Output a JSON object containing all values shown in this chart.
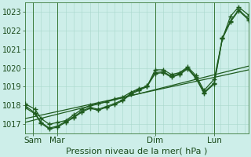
{
  "title": "Pression niveau de la mer( hPa )",
  "background_color": "#cdeee9",
  "grid_color": "#a8d8cc",
  "line_color": "#1f5c1f",
  "marker_color": "#1f5c1f",
  "ylim": [
    1016.5,
    1023.5
  ],
  "yticks": [
    1017,
    1018,
    1019,
    1020,
    1021,
    1022,
    1023
  ],
  "xlim": [
    0,
    110
  ],
  "day_labels": [
    "Sam",
    "Mar",
    "Dim",
    "Lun"
  ],
  "day_positions": [
    4,
    16,
    64,
    93
  ],
  "vline_positions": [
    4,
    16,
    64,
    93
  ],
  "line1_x": [
    0,
    110
  ],
  "line1_y": [
    1017.1,
    1020.1
  ],
  "line2_x": [
    0,
    5,
    8,
    12,
    16,
    20,
    24,
    28,
    32,
    36,
    40,
    44,
    48,
    52,
    56,
    60,
    64,
    68,
    72,
    76,
    80,
    84,
    88,
    93,
    97,
    101,
    105,
    110
  ],
  "line2_y": [
    1018.1,
    1017.8,
    1017.3,
    1017.0,
    1017.1,
    1017.2,
    1017.5,
    1017.8,
    1018.0,
    1018.1,
    1018.2,
    1018.35,
    1018.45,
    1018.7,
    1018.9,
    1019.0,
    1019.9,
    1019.9,
    1019.65,
    1019.75,
    1020.05,
    1019.6,
    1018.8,
    1019.4,
    1021.55,
    1022.75,
    1023.25,
    1022.8
  ],
  "line3_x": [
    0,
    5,
    8,
    12,
    16,
    20,
    24,
    28,
    32,
    36,
    40,
    44,
    48,
    52,
    56,
    60,
    64,
    68,
    72,
    76,
    80,
    84,
    88,
    93,
    97,
    101,
    105,
    110
  ],
  "line3_y": [
    1018.0,
    1017.6,
    1017.1,
    1016.8,
    1016.9,
    1017.15,
    1017.4,
    1017.7,
    1017.9,
    1017.8,
    1017.95,
    1018.1,
    1018.3,
    1018.65,
    1018.85,
    1019.05,
    1019.75,
    1019.8,
    1019.55,
    1019.7,
    1020.0,
    1019.5,
    1018.7,
    1019.2,
    1021.6,
    1022.5,
    1023.1,
    1022.6
  ],
  "line4_x": [
    0,
    5,
    8,
    12,
    16,
    20,
    24,
    28,
    32,
    36,
    40,
    44,
    48,
    52,
    56,
    60,
    64,
    68,
    72,
    76,
    80,
    84,
    88,
    93,
    97,
    101,
    105,
    110
  ],
  "line4_y": [
    1017.9,
    1017.55,
    1017.05,
    1016.75,
    1016.85,
    1017.1,
    1017.35,
    1017.65,
    1017.85,
    1017.75,
    1017.9,
    1018.05,
    1018.25,
    1018.6,
    1018.8,
    1019.0,
    1019.7,
    1019.75,
    1019.5,
    1019.65,
    1019.95,
    1019.45,
    1018.65,
    1019.15,
    1021.55,
    1022.45,
    1023.05,
    1022.55
  ],
  "title_fontsize": 8,
  "ylabel_fontsize": 7,
  "xlabel_fontsize": 7.5
}
